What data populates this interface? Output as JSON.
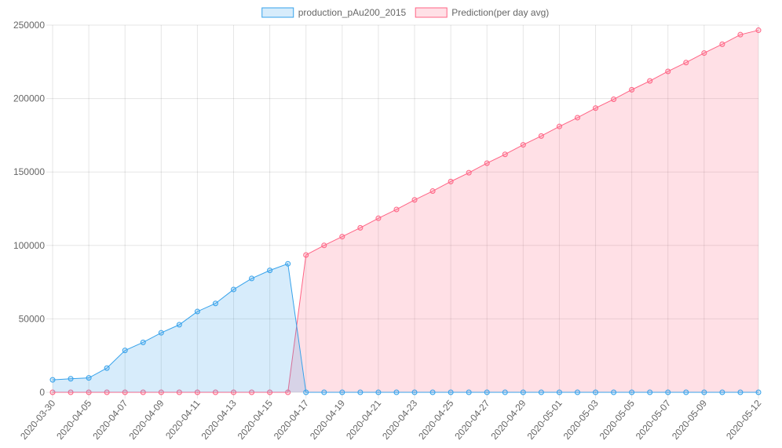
{
  "chart_data": {
    "type": "area",
    "title": "",
    "xlabel": "",
    "ylabel": "",
    "ylim": [
      0,
      250000
    ],
    "y_ticks": [
      0,
      50000,
      100000,
      150000,
      200000,
      250000
    ],
    "grid": true,
    "legend_position": "top-center",
    "x": [
      "2020-03-30",
      "2020-04-04",
      "2020-04-05",
      "2020-04-06",
      "2020-04-07",
      "2020-04-08",
      "2020-04-09",
      "2020-04-10",
      "2020-04-11",
      "2020-04-12",
      "2020-04-13",
      "2020-04-14",
      "2020-04-15",
      "2020-04-16",
      "2020-04-17",
      "2020-04-18",
      "2020-04-19",
      "2020-04-20",
      "2020-04-21",
      "2020-04-22",
      "2020-04-23",
      "2020-04-24",
      "2020-04-25",
      "2020-04-26",
      "2020-04-27",
      "2020-04-28",
      "2020-04-29",
      "2020-04-30",
      "2020-05-01",
      "2020-05-02",
      "2020-05-03",
      "2020-05-04",
      "2020-05-05",
      "2020-05-06",
      "2020-05-07",
      "2020-05-08",
      "2020-05-09",
      "2020-05-10",
      "2020-05-11",
      "2020-05-12"
    ],
    "x_tick_labels": [
      "2020-03-30",
      "2020-04-05",
      "2020-04-07",
      "2020-04-09",
      "2020-04-11",
      "2020-04-13",
      "2020-04-15",
      "2020-04-17",
      "2020-04-19",
      "2020-04-21",
      "2020-04-23",
      "2020-04-25",
      "2020-04-27",
      "2020-04-29",
      "2020-05-01",
      "2020-05-03",
      "2020-05-05",
      "2020-05-07",
      "2020-05-09",
      "2020-05-12"
    ],
    "series": [
      {
        "name": "production_pAu200_2015",
        "color": "#36a2eb",
        "fill": "rgba(54,162,235,0.2)",
        "values": [
          8500,
          9200,
          9800,
          16500,
          28500,
          34000,
          40500,
          46000,
          55000,
          60500,
          70000,
          77500,
          83000,
          87500,
          0,
          0,
          0,
          0,
          0,
          0,
          0,
          0,
          0,
          0,
          0,
          0,
          0,
          0,
          0,
          0,
          0,
          0,
          0,
          0,
          0,
          0,
          0,
          0,
          0,
          0
        ]
      },
      {
        "name": "Prediction(per day avg)",
        "color": "#ff6384",
        "fill": "rgba(255,99,132,0.2)",
        "values": [
          0,
          0,
          0,
          0,
          0,
          0,
          0,
          0,
          0,
          0,
          0,
          0,
          0,
          0,
          93500,
          100000,
          106000,
          112000,
          118500,
          124500,
          131000,
          137000,
          143500,
          149500,
          156000,
          162000,
          168500,
          174500,
          181000,
          187000,
          193500,
          199500,
          206000,
          212000,
          218500,
          224500,
          231000,
          237000,
          243500,
          246500
        ]
      }
    ]
  }
}
